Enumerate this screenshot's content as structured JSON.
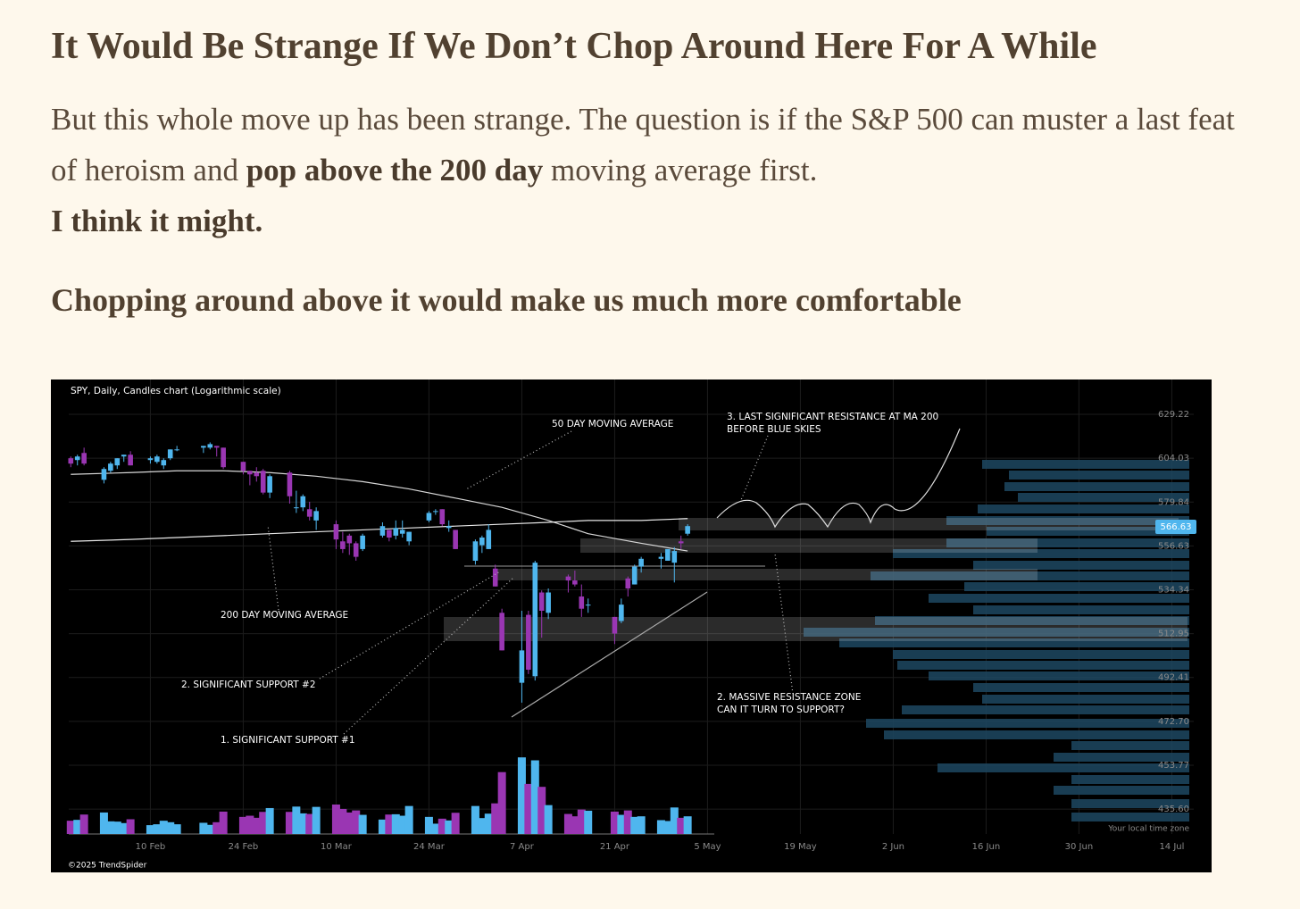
{
  "heading": "It Would Be Strange If We Don’t Chop Around Here For A While",
  "paragraph": {
    "runs": [
      {
        "text": "But this whole move up has been strange. The question is if the S&P 500 can muster a last feat of heroism and ",
        "bold": false
      },
      {
        "text": "pop above the 200 day",
        "bold": true
      },
      {
        "text": " moving average first.",
        "bold": false
      }
    ]
  },
  "emphasis": "I think it might.",
  "subheading": "Chopping around above it would make us much more comfortable",
  "chart_data": {
    "type": "candlestick",
    "title": "SPY, Daily, Candles chart (Logarithmic scale)",
    "log_scale": true,
    "grid": true,
    "up_color": "#4fb6ee",
    "down_color": "#9a36b3",
    "xlim": [
      "26 Jan",
      "20 Jul"
    ],
    "xticks": [
      "10 Feb",
      "24 Feb",
      "10 Mar",
      "24 Mar",
      "7 Apr",
      "21 Apr",
      "5 May",
      "19 May",
      "2 Jun",
      "16 Jun",
      "30 Jun",
      "14 Jul"
    ],
    "ylim": [
      425.6,
      647.3
    ],
    "yticks": [
      629.22,
      604.03,
      579.84,
      556.63,
      534.34,
      512.95,
      492.41,
      {
        "value": 472.7,
        "label": "472.70"
      },
      453.77,
      {
        "value": 435.6,
        "label": "435.60"
      }
    ],
    "volume_lim": [
      0,
      300
    ],
    "last_price": 566.63,
    "last_price_color": "#4fb6ee",
    "candles": [
      {
        "x": "29 Jan",
        "open": 604,
        "high": 605,
        "low": 599,
        "close": 601,
        "volume": 45
      },
      {
        "x": "30 Jan",
        "open": 603,
        "high": 606,
        "low": 600,
        "close": 605,
        "volume": 48
      },
      {
        "x": "31 Jan",
        "open": 607,
        "high": 610,
        "low": 600,
        "close": 601,
        "volume": 66
      },
      {
        "x": "3 Feb",
        "open": 592,
        "high": 599,
        "low": 590,
        "close": 598,
        "volume": 73
      },
      {
        "x": "4 Feb",
        "open": 597,
        "high": 602,
        "low": 596,
        "close": 601,
        "volume": 43
      },
      {
        "x": "5 Feb",
        "open": 600,
        "high": 604,
        "low": 598,
        "close": 604,
        "volume": 42
      },
      {
        "x": "6 Feb",
        "open": 605,
        "high": 606,
        "low": 602,
        "close": 606,
        "volume": 37
      },
      {
        "x": "7 Feb",
        "open": 606,
        "high": 608,
        "low": 600,
        "close": 600,
        "volume": 50
      },
      {
        "x": "10 Feb",
        "open": 603,
        "high": 605,
        "low": 601,
        "close": 604,
        "volume": 30
      },
      {
        "x": "11 Feb",
        "open": 602,
        "high": 606,
        "low": 601,
        "close": 605,
        "volume": 33
      },
      {
        "x": "12 Feb",
        "open": 600,
        "high": 604,
        "low": 598,
        "close": 603,
        "volume": 45
      },
      {
        "x": "13 Feb",
        "open": 604,
        "high": 609,
        "low": 603,
        "close": 609,
        "volume": 40
      },
      {
        "x": "14 Feb",
        "open": 609,
        "high": 611,
        "low": 608,
        "close": 609,
        "volume": 33
      },
      {
        "x": "18 Feb",
        "open": 610,
        "high": 611,
        "low": 607,
        "close": 611,
        "volume": 38
      },
      {
        "x": "19 Feb",
        "open": 610,
        "high": 613,
        "low": 609,
        "close": 612,
        "volume": 31
      },
      {
        "x": "20 Feb",
        "open": 611,
        "high": 611,
        "low": 605,
        "close": 610,
        "volume": 40
      },
      {
        "x": "21 Feb",
        "open": 610,
        "high": 610,
        "low": 598,
        "close": 599,
        "volume": 76
      },
      {
        "x": "24 Feb",
        "open": 602,
        "high": 602,
        "low": 595,
        "close": 597,
        "volume": 58
      },
      {
        "x": "25 Feb",
        "open": 597,
        "high": 597,
        "low": 589,
        "close": 595,
        "volume": 62
      },
      {
        "x": "26 Feb",
        "open": 596,
        "high": 599,
        "low": 591,
        "close": 594,
        "volume": 55
      },
      {
        "x": "27 Feb",
        "open": 597,
        "high": 598,
        "low": 584,
        "close": 585,
        "volume": 75
      },
      {
        "x": "28 Feb",
        "open": 585,
        "high": 595,
        "low": 582,
        "close": 594,
        "volume": 88
      },
      {
        "x": "3 Mar",
        "open": 596,
        "high": 597,
        "low": 579,
        "close": 583,
        "volume": 75
      },
      {
        "x": "4 Mar",
        "open": 577,
        "high": 586,
        "low": 574,
        "close": 577,
        "volume": 93
      },
      {
        "x": "5 Mar",
        "open": 577,
        "high": 584,
        "low": 575,
        "close": 583,
        "volume": 70
      },
      {
        "x": "6 Mar",
        "open": 576,
        "high": 580,
        "low": 570,
        "close": 572,
        "volume": 68
      },
      {
        "x": "7 Mar",
        "open": 570,
        "high": 577,
        "low": 565,
        "close": 575,
        "volume": 92
      },
      {
        "x": "10 Mar",
        "open": 568,
        "high": 570,
        "low": 555,
        "close": 560,
        "volume": 100
      },
      {
        "x": "11 Mar",
        "open": 559,
        "high": 564,
        "low": 553,
        "close": 555,
        "volume": 85
      },
      {
        "x": "12 Mar",
        "open": 562,
        "high": 563,
        "low": 552,
        "close": 558,
        "volume": 73
      },
      {
        "x": "13 Mar",
        "open": 558,
        "high": 559,
        "low": 549,
        "close": 551,
        "volume": 80
      },
      {
        "x": "14 Mar",
        "open": 555,
        "high": 563,
        "low": 554,
        "close": 562,
        "volume": 65
      },
      {
        "x": "17 Mar",
        "open": 562,
        "high": 569,
        "low": 561,
        "close": 567,
        "volume": 49
      },
      {
        "x": "18 Mar",
        "open": 565,
        "high": 565,
        "low": 559,
        "close": 561,
        "volume": 66
      },
      {
        "x": "19 Mar",
        "open": 562,
        "high": 570,
        "low": 560,
        "close": 566,
        "volume": 67
      },
      {
        "x": "20 Mar",
        "open": 563,
        "high": 570,
        "low": 561,
        "close": 565,
        "volume": 62
      },
      {
        "x": "21 Mar",
        "open": 559,
        "high": 564,
        "low": 557,
        "close": 564,
        "volume": 95
      },
      {
        "x": "24 Mar",
        "open": 570,
        "high": 575,
        "low": 569,
        "close": 574,
        "volume": 58
      },
      {
        "x": "25 Mar",
        "open": 575,
        "high": 576,
        "low": 573,
        "close": 575,
        "volume": 35
      },
      {
        "x": "26 Mar",
        "open": 576,
        "high": 576,
        "low": 567,
        "close": 568,
        "volume": 52
      },
      {
        "x": "27 Mar",
        "open": 566,
        "high": 570,
        "low": 564,
        "close": 567,
        "volume": 46
      },
      {
        "x": "28 Mar",
        "open": 565,
        "high": 565,
        "low": 555,
        "close": 555,
        "volume": 72
      },
      {
        "x": "31 Mar",
        "open": 549,
        "high": 560,
        "low": 547,
        "close": 559,
        "volume": 95
      },
      {
        "x": "1 Apr",
        "open": 557,
        "high": 562,
        "low": 553,
        "close": 561,
        "volume": 54
      },
      {
        "x": "2 Apr",
        "open": 555,
        "high": 568,
        "low": 555,
        "close": 565,
        "volume": 69
      },
      {
        "x": "3 Apr",
        "open": 545,
        "high": 547,
        "low": 536,
        "close": 536,
        "volume": 104
      },
      {
        "x": "4 Apr",
        "open": 523,
        "high": 525,
        "low": 505,
        "close": 505,
        "volume": 210
      },
      {
        "x": "7 Apr",
        "open": 490,
        "high": 524,
        "low": 481,
        "close": 505,
        "volume": 260
      },
      {
        "x": "8 Apr",
        "open": 522,
        "high": 524,
        "low": 494,
        "close": 496,
        "volume": 170
      },
      {
        "x": "9 Apr",
        "open": 493,
        "high": 549,
        "low": 491,
        "close": 548,
        "volume": 250
      },
      {
        "x": "10 Apr",
        "open": 533,
        "high": 534,
        "low": 511,
        "close": 524,
        "volume": 160
      },
      {
        "x": "11 Apr",
        "open": 523,
        "high": 535,
        "low": 520,
        "close": 533,
        "volume": 98
      },
      {
        "x": "14 Apr",
        "open": 541,
        "high": 542,
        "low": 533,
        "close": 539,
        "volume": 68
      },
      {
        "x": "15 Apr",
        "open": 539,
        "high": 544,
        "low": 536,
        "close": 537,
        "volume": 60
      },
      {
        "x": "16 Apr",
        "open": 531,
        "high": 537,
        "low": 521,
        "close": 525,
        "volume": 83
      },
      {
        "x": "17 Apr",
        "open": 527,
        "high": 530,
        "low": 523,
        "close": 527,
        "volume": 79
      },
      {
        "x": "21 Apr",
        "open": 521,
        "high": 521,
        "low": 508,
        "close": 513,
        "volume": 76
      },
      {
        "x": "22 Apr",
        "open": 519,
        "high": 530,
        "low": 518,
        "close": 527,
        "volume": 65
      },
      {
        "x": "23 Apr",
        "open": 540,
        "high": 541,
        "low": 531,
        "close": 535,
        "volume": 80
      },
      {
        "x": "24 Apr",
        "open": 537,
        "high": 547,
        "low": 537,
        "close": 546,
        "volume": 58
      },
      {
        "x": "25 Apr",
        "open": 546,
        "high": 551,
        "low": 543,
        "close": 550,
        "volume": 60
      },
      {
        "x": "28 Apr",
        "open": 550,
        "high": 553,
        "low": 545,
        "close": 551,
        "volume": 47
      },
      {
        "x": "29 Apr",
        "open": 549,
        "high": 555,
        "low": 549,
        "close": 555,
        "volume": 44
      },
      {
        "x": "30 Apr",
        "open": 548,
        "high": 556,
        "low": 538,
        "close": 554,
        "volume": 90
      },
      {
        "x": "1 May",
        "open": 559,
        "high": 562,
        "low": 555,
        "close": 558,
        "volume": 55
      },
      {
        "x": "2 May",
        "open": 563,
        "high": 568,
        "low": 562,
        "close": 567,
        "volume": 60
      }
    ],
    "moving_averages": {
      "x": [
        "29 Jan",
        "7 Feb",
        "14 Feb",
        "21 Feb",
        "28 Feb",
        "7 Mar",
        "14 Mar",
        "21 Mar",
        "28 Mar",
        "4 Apr",
        "11 Apr",
        "17 Apr",
        "25 Apr",
        "2 May"
      ],
      "series": [
        {
          "color": "#d8d8d8",
          "values": [
            595,
            596,
            597,
            597,
            596,
            594,
            591,
            587,
            582,
            577,
            570,
            563,
            558,
            554
          ]
        },
        {
          "color": "#e8e8e8",
          "values": [
            559,
            560,
            561,
            562,
            563,
            564,
            565,
            566,
            567,
            568,
            569,
            570,
            570,
            571
          ]
        }
      ]
    },
    "annotations": [
      {
        "lines": [
          "50 DAY MOVING AVERAGE"
        ]
      },
      {
        "lines": [
          "3. LAST SIGNIFICANT RESISTANCE AT MA 200",
          "BEFORE BLUE SKIES"
        ]
      },
      {
        "lines": [
          "200 DAY MOVING AVERAGE"
        ]
      },
      {
        "lines": [
          "2. SIGNIFICANT SUPPORT #2"
        ]
      },
      {
        "lines": [
          "1. SIGNIFICANT SUPPORT #1"
        ]
      },
      {
        "lines": [
          "2. MASSIVE RESISTANCE ZONE",
          "CAN IT TURN TO SUPPORT?"
        ]
      }
    ],
    "timezone_note": "Your local time zone",
    "copyright": "©2025 TrendSpider"
  }
}
